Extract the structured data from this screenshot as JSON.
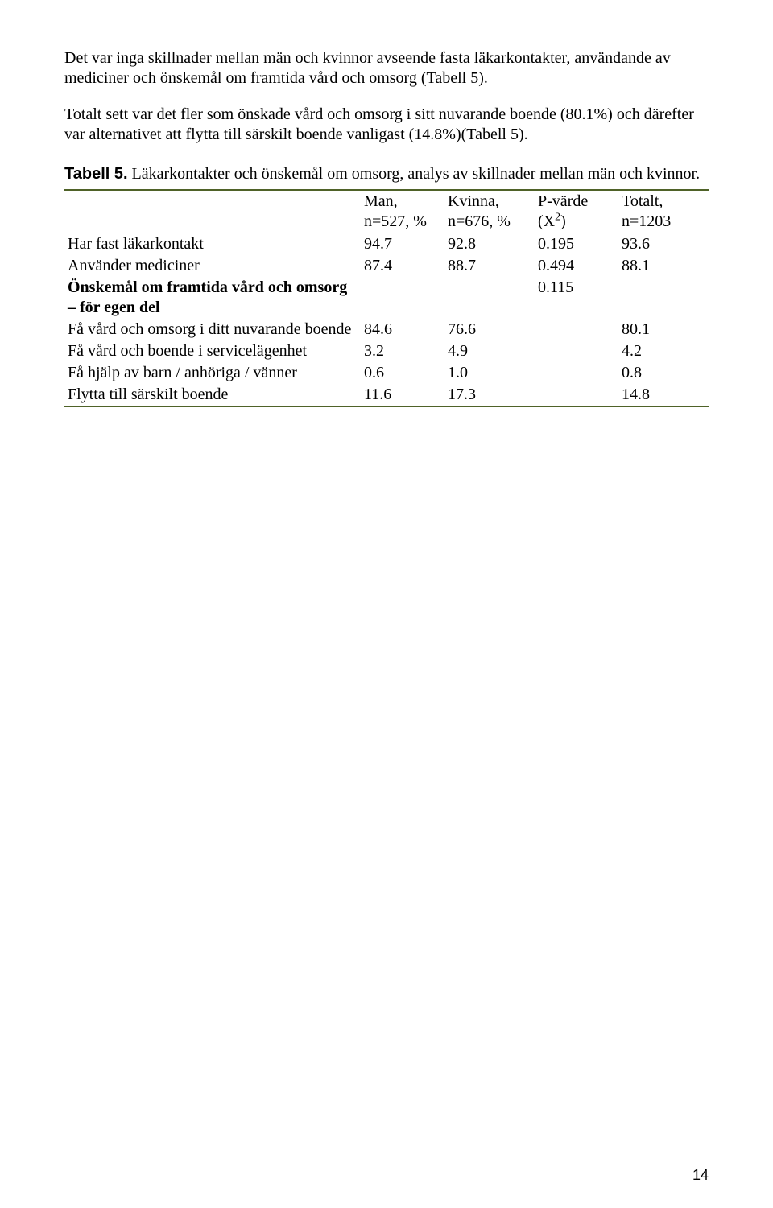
{
  "paragraph1": "Det var inga skillnader mellan män och kvinnor avseende fasta läkarkontakter, användande av mediciner och önskemål om framtida vård och omsorg (Tabell 5).",
  "paragraph2": "Totalt sett var det fler som önskade vård och omsorg i sitt nuvarande boende (80.1%) och därefter var alternativet att flytta till särskilt boende vanligast (14.8%)(Tabell 5).",
  "caption_label": "Tabell 5.",
  "caption_text": " Läkarkontakter och önskemål om omsorg, analys av skillnader mellan män och kvinnor.",
  "table": {
    "border_color": "#4f6228",
    "head": {
      "c1_l1": "Man,",
      "c1_l2": "n=527, %",
      "c2_l1": "Kvinna,",
      "c2_l2": "n=676, %",
      "c3_l1": "P-värde",
      "c3_l2_pre": "(X",
      "c3_l2_sup": "2",
      "c3_l2_post": ")",
      "c4_l1": "Totalt,",
      "c4_l2": "n=1203"
    },
    "rows": [
      {
        "label": "Har fast läkarkontakt",
        "man": "94.7",
        "kvinna": "92.8",
        "p": "0.195",
        "total": "93.6",
        "bold": false
      },
      {
        "label": "Använder mediciner",
        "man": "87.4",
        "kvinna": "88.7",
        "p": "0.494",
        "total": "88.1",
        "bold": false
      },
      {
        "label": "Önskemål om framtida vård och omsorg – för egen del",
        "man": "",
        "kvinna": "",
        "p": "0.115",
        "total": "",
        "bold": true
      },
      {
        "label": "Få vård och omsorg i ditt nuvarande boende",
        "man": "84.6",
        "kvinna": "76.6",
        "p": "",
        "total": "80.1",
        "bold": false
      },
      {
        "label": "Få vård och boende i servicelägenhet",
        "man": "3.2",
        "kvinna": "4.9",
        "p": "",
        "total": "4.2",
        "bold": false
      },
      {
        "label": "Få hjälp av barn / anhöriga / vänner",
        "man": "0.6",
        "kvinna": "1.0",
        "p": "",
        "total": "0.8",
        "bold": false
      },
      {
        "label": "Flytta till särskilt boende",
        "man": "11.6",
        "kvinna": "17.3",
        "p": "",
        "total": "14.8",
        "bold": false
      }
    ]
  },
  "page_number": "14"
}
